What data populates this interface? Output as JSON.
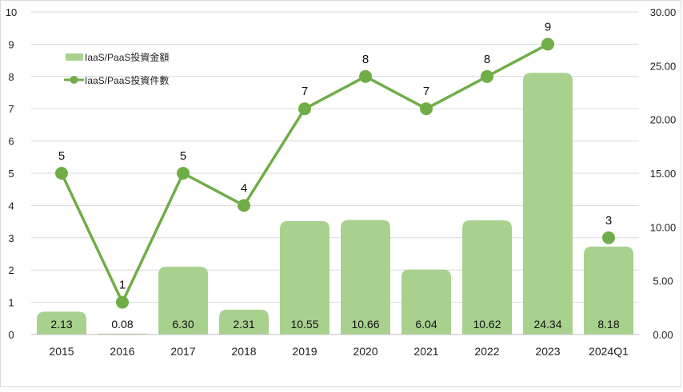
{
  "chart_data": {
    "type": "bar+line",
    "categories": [
      "2015",
      "2016",
      "2017",
      "2018",
      "2019",
      "2020",
      "2021",
      "2022",
      "2023",
      "2024Q1"
    ],
    "series": [
      {
        "name": "IaaS/PaaS投資金額",
        "type": "bar",
        "axis": "right",
        "values": [
          2.13,
          0.08,
          6.3,
          2.31,
          10.55,
          10.66,
          6.04,
          10.62,
          24.34,
          8.18
        ],
        "labels": [
          "2.13",
          "0.08",
          "6.30",
          "2.31",
          "10.55",
          "10.66",
          "6.04",
          "10.62",
          "24.34",
          "8.18"
        ],
        "color": "#a9d18e"
      },
      {
        "name": "IaaS/PaaS投資件數",
        "type": "line",
        "axis": "left",
        "values": [
          5,
          1,
          5,
          4,
          7,
          8,
          7,
          8,
          9,
          3
        ],
        "labels": [
          "5",
          "1",
          "5",
          "4",
          "7",
          "8",
          "7",
          "8",
          "9",
          "3"
        ],
        "connected_through_index": 8,
        "color": "#70ad47"
      }
    ],
    "y_left": {
      "ylim": [
        0,
        10
      ],
      "ticks": [
        "0",
        "1",
        "2",
        "3",
        "4",
        "5",
        "6",
        "7",
        "8",
        "9",
        "10"
      ]
    },
    "y_right": {
      "ylim": [
        0,
        30
      ],
      "ticks": [
        "0.00",
        "5.00",
        "10.00",
        "15.00",
        "20.00",
        "25.00",
        "30.00"
      ]
    },
    "grid": "horizontal",
    "legend_position": "top-left"
  }
}
